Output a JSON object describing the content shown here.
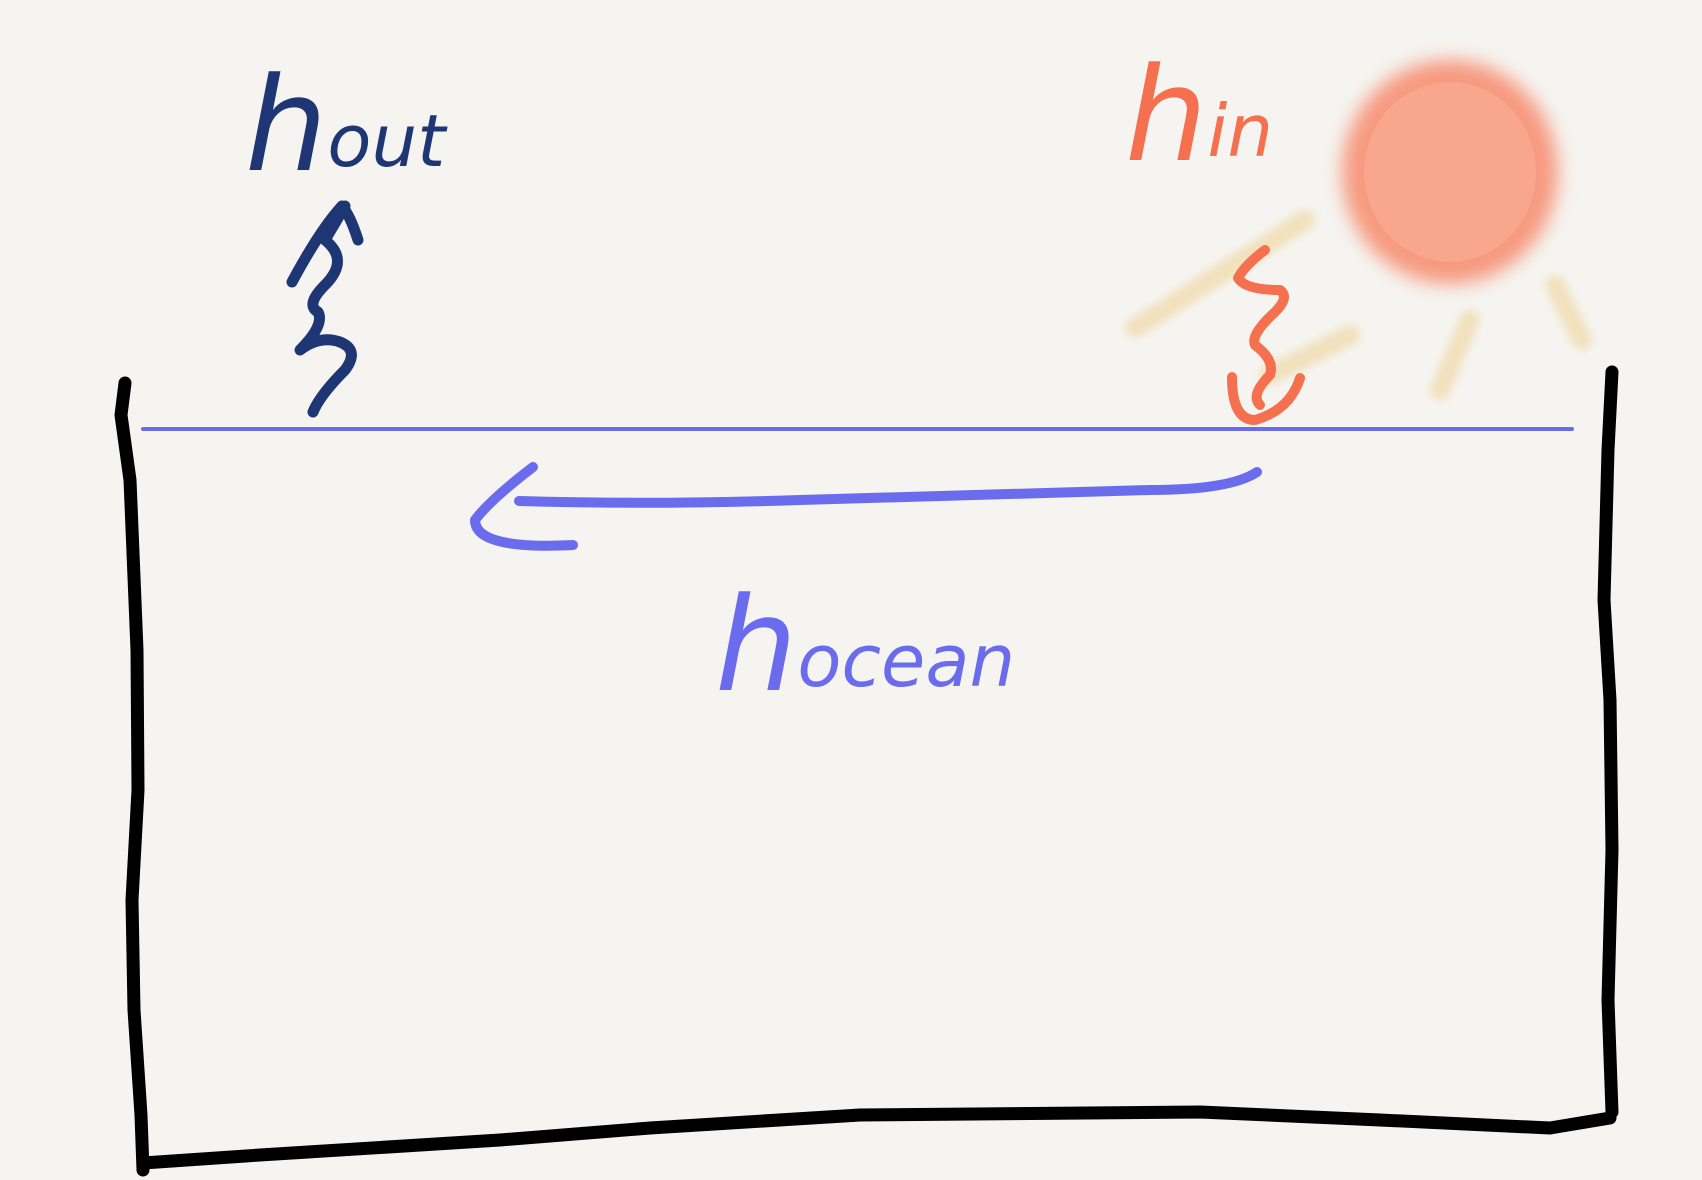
{
  "labels": {
    "out": {
      "symbol": "h",
      "subscript": "out"
    },
    "in": {
      "symbol": "h",
      "subscript": "in"
    },
    "ocean": {
      "symbol": "h",
      "subscript": "ocean"
    }
  }
}
